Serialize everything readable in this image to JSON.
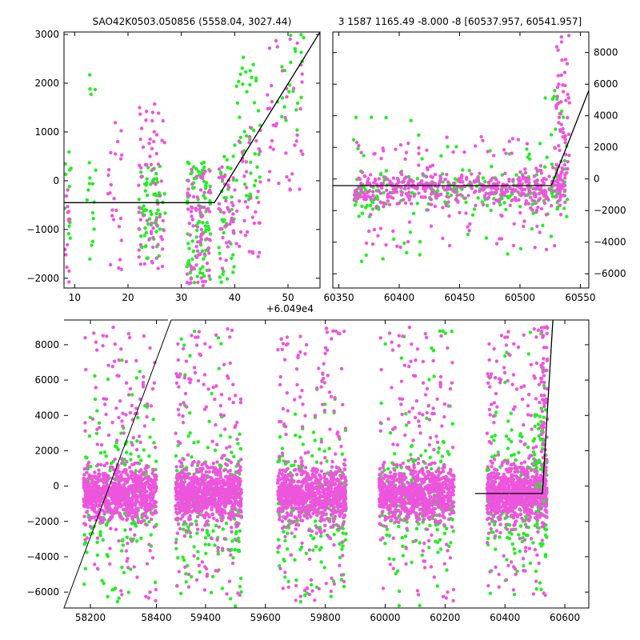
{
  "title_left": "SAO42K0503.050856 (5558.04, 3027.44)",
  "title_right": "3 1587 1165.49 -8.000 -8 [60537.957, 60541.957]",
  "colors": {
    "green": "#22ee22",
    "magenta": "#ee55dd",
    "fit": "#000000"
  },
  "chart_data": [
    {
      "type": "scatter",
      "panel": "top-left",
      "xlim": [
        8,
        56
      ],
      "ylim": [
        -2200,
        3050
      ],
      "x_offset_label": "+6.049e4",
      "xticks": [
        10,
        20,
        30,
        40,
        50
      ],
      "yticks": [
        -2000,
        -1000,
        0,
        1000,
        2000,
        3000
      ],
      "ytick_side": "left",
      "fit_line": [
        [
          8,
          -450
        ],
        [
          36.2,
          -450
        ],
        [
          56,
          3050
        ]
      ],
      "series": [
        {
          "color": "green",
          "clusters": [
            {
              "x": [
                8,
                9.5
              ],
              "y": [
                -1600,
                600
              ],
              "n": 12
            },
            {
              "x": [
                12,
                14
              ],
              "y": [
                -1700,
                2400
              ],
              "n": 18
            },
            {
              "x": [
                22,
                27
              ],
              "y": [
                -1600,
                300
              ],
              "n": 70
            },
            {
              "x": [
                31,
                35.5
              ],
              "y": [
                -2100,
                400
              ],
              "n": 90
            },
            {
              "x": [
                37,
                40
              ],
              "y": [
                -2100,
                600
              ],
              "n": 40
            },
            {
              "x": [
                40,
                45
              ],
              "y": [
                -400,
                2600
              ],
              "n": 45
            },
            {
              "x": [
                48,
                53
              ],
              "y": [
                1000,
                3000
              ],
              "n": 22
            }
          ]
        },
        {
          "color": "magenta",
          "clusters": [
            {
              "x": [
                8,
                9
              ],
              "y": [
                -2100,
                -100
              ],
              "n": 14
            },
            {
              "x": [
                16,
                19
              ],
              "y": [
                -2000,
                1300
              ],
              "n": 24
            },
            {
              "x": [
                22,
                27
              ],
              "y": [
                -1800,
                1800
              ],
              "n": 70
            },
            {
              "x": [
                31,
                35.5
              ],
              "y": [
                -2200,
                300
              ],
              "n": 80
            },
            {
              "x": [
                37,
                40
              ],
              "y": [
                -1800,
                400
              ],
              "n": 40
            },
            {
              "x": [
                40,
                45
              ],
              "y": [
                -1700,
                1200
              ],
              "n": 40
            },
            {
              "x": [
                46,
                53
              ],
              "y": [
                -200,
                3000
              ],
              "n": 40
            }
          ]
        }
      ]
    },
    {
      "type": "scatter",
      "panel": "top-right",
      "xlim": [
        60345,
        60557
      ],
      "ylim": [
        -6900,
        9300
      ],
      "xticks": [
        60350,
        60400,
        60450,
        60500,
        60550
      ],
      "yticks": [
        -6000,
        -4000,
        -2000,
        0,
        2000,
        4000,
        6000,
        8000
      ],
      "ytick_side": "right",
      "fit_line": [
        [
          60345,
          -420
        ],
        [
          60526,
          -420
        ],
        [
          60557,
          5600
        ]
      ],
      "series": [
        {
          "color": "green",
          "clusters": [
            {
              "x": [
                60362,
                60538
              ],
              "y": [
                -5500,
                4000
              ],
              "n": 260,
              "core": [
                -1800,
                400
              ]
            },
            {
              "x": [
                60520,
                60540
              ],
              "y": [
                -2500,
                6000
              ],
              "n": 25
            }
          ]
        },
        {
          "color": "magenta",
          "clusters": [
            {
              "x": [
                60362,
                60538
              ],
              "y": [
                -4500,
                3000
              ],
              "n": 520,
              "core": [
                -1500,
                300
              ]
            },
            {
              "x": [
                60530,
                60541
              ],
              "y": [
                0,
                9200
              ],
              "n": 55
            }
          ]
        }
      ]
    },
    {
      "type": "scatter",
      "panel": "bottom",
      "xlim": [
        58120,
        60680
      ],
      "ylim": [
        -6900,
        9400
      ],
      "xticks": [
        58200,
        58400,
        59400,
        59600,
        59800,
        60000,
        60200,
        60400,
        60600
      ],
      "yticks": [
        -6000,
        -4000,
        -2000,
        0,
        2000,
        4000,
        6000,
        8000
      ],
      "ytick_side": "left",
      "axis_break": {
        "x_before": 58440,
        "x_after": 59280
      },
      "fit_line": [
        [
          60300,
          -420
        ],
        [
          60525,
          -420
        ],
        [
          60560,
          9400
        ]
      ],
      "seasons": [
        {
          "x": [
            58180,
            58400
          ]
        },
        {
          "x": [
            59300,
            59520
          ]
        },
        {
          "x": [
            59640,
            59870
          ]
        },
        {
          "x": [
            59980,
            60230
          ]
        },
        {
          "x": [
            60340,
            60540
          ]
        }
      ],
      "series": [
        {
          "color": "green",
          "per_season_n": 220,
          "core": [
            -3500,
            2000
          ],
          "spread": [
            -6800,
            9000
          ]
        },
        {
          "color": "magenta",
          "per_season_n": 900,
          "core": [
            -1500,
            600
          ],
          "spread": [
            -6500,
            9000
          ]
        }
      ]
    }
  ]
}
